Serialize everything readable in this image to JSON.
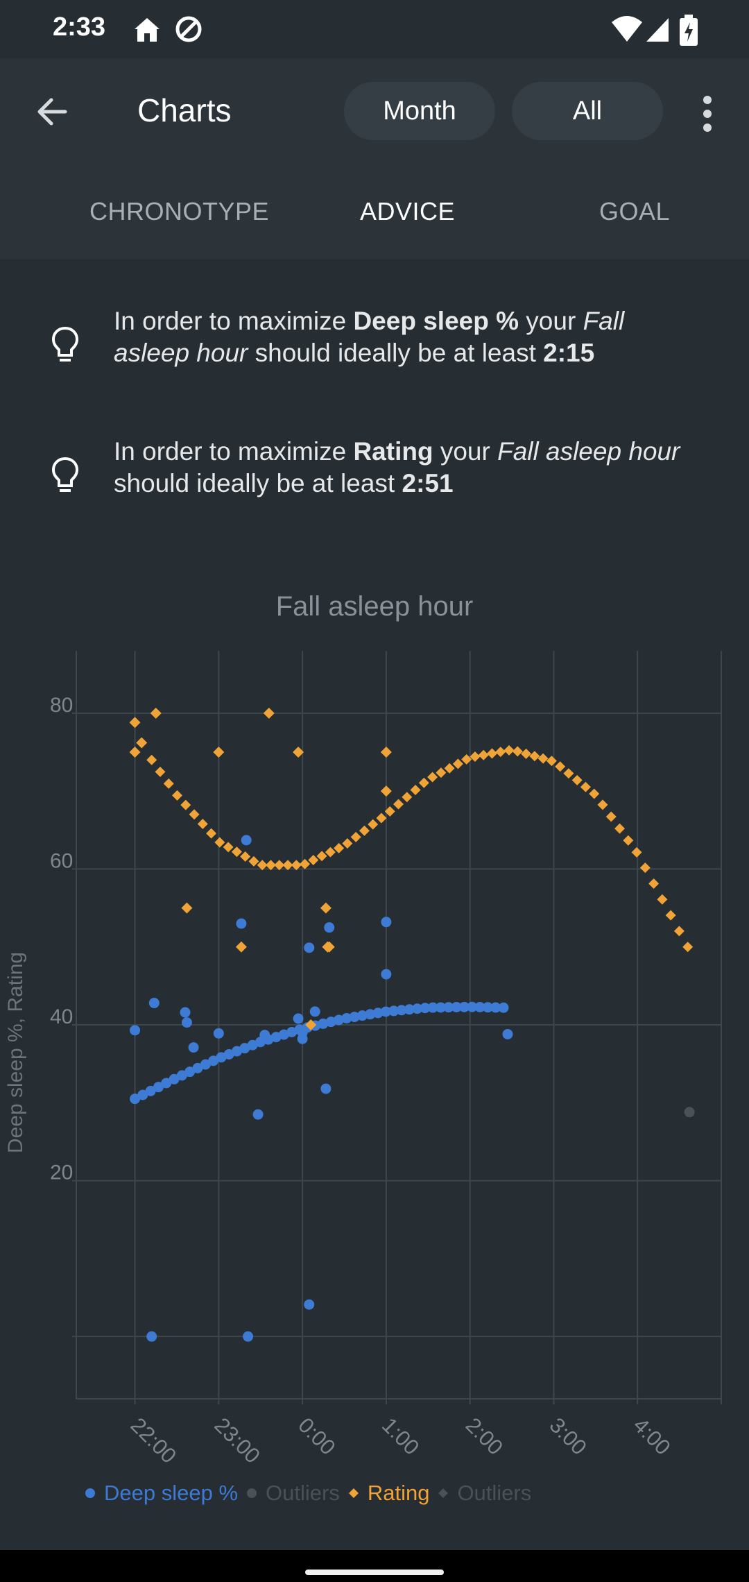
{
  "status": {
    "time": "2:33"
  },
  "header": {
    "title": "Charts",
    "month_label": "Month",
    "all_label": "All"
  },
  "tabs": [
    {
      "label": "CHRONOTYPE"
    },
    {
      "label": "ADVICE"
    },
    {
      "label": "GOAL"
    }
  ],
  "advice": [
    {
      "prefix": "In order to maximize ",
      "metric": "Deep sleep %",
      "mid1": " your ",
      "field": "Fall asleep hour",
      "mid2": " should ideally be at least ",
      "value": "2:15"
    },
    {
      "prefix": "In order to maximize ",
      "metric": "Rating",
      "mid1": " your ",
      "field": "Fall asleep hour",
      "mid2": " should ideally be at least ",
      "value": "2:51"
    }
  ],
  "colors": {
    "background": "#262d33",
    "deep_sleep": "#3d7bd4",
    "rating": "#f0a336",
    "outlier": "#4a5157"
  },
  "chart_data": {
    "type": "scatter",
    "title": "Fall asleep hour",
    "xlabel": "",
    "ylabel": "Deep sleep %, Rating",
    "x_tick_labels": [
      "22:00",
      "23:00",
      "0:00",
      "1:00",
      "2:00",
      "3:00",
      "4:00"
    ],
    "x_ticks_hours": [
      22,
      23,
      24,
      25,
      26,
      27,
      28
    ],
    "xlim_hours": [
      21.3,
      29.0
    ],
    "y_ticks": [
      20,
      40,
      60,
      80
    ],
    "ylim": [
      -8,
      88
    ],
    "grid": true,
    "legend": [
      {
        "label": "Deep sleep %",
        "color": "#3d7bd4",
        "marker": "circle"
      },
      {
        "label": "Outliers",
        "color": "#4a5157",
        "marker": "circle"
      },
      {
        "label": "Rating",
        "color": "#f0a336",
        "marker": "diamond"
      },
      {
        "label": "Outliers",
        "color": "#4a5157",
        "marker": "diamond"
      }
    ],
    "series": [
      {
        "name": "Deep sleep %",
        "marker": "circle",
        "x": [
          22.0,
          22.23,
          22.6,
          22.62,
          22.7,
          23.0,
          23.27,
          23.33,
          23.47,
          23.55,
          23.95,
          24.0,
          24.0,
          24.08,
          24.15,
          24.28,
          24.32,
          25.0,
          25.0,
          26.45,
          22.2,
          23.35,
          24.08
        ],
        "y": [
          39.3,
          42.8,
          41.6,
          40.3,
          37.1,
          38.9,
          53.0,
          63.7,
          28.5,
          38.7,
          40.8,
          39.0,
          38.2,
          49.9,
          41.7,
          31.8,
          52.5,
          53.2,
          46.5,
          38.8,
          0.0,
          0.0,
          4.1
        ]
      },
      {
        "name": "Outliers",
        "marker": "circle",
        "x": [
          28.62
        ],
        "y": [
          28.8
        ]
      },
      {
        "name": "Rating",
        "marker": "diamond",
        "x": [
          22.0,
          22.0,
          22.08,
          22.25,
          22.62,
          23.0,
          23.27,
          23.6,
          23.95,
          24.1,
          24.28,
          24.3,
          24.32,
          25.0,
          25.0
        ],
        "y": [
          78.8,
          75.0,
          76.2,
          80.0,
          55.0,
          75.0,
          50.0,
          80.0,
          75.0,
          40.0,
          55.0,
          50.0,
          50.0,
          75.0,
          70.0
        ]
      },
      {
        "name": "Outliers",
        "marker": "diamond",
        "x": [],
        "y": []
      }
    ],
    "trend_lines": [
      {
        "series": "Deep sleep %",
        "marker": "circle",
        "x": [
          22.0,
          22.5,
          23.0,
          23.5,
          24.0,
          24.5,
          25.0,
          25.5,
          26.0,
          26.4
        ],
        "y": [
          30.5,
          33.2,
          35.7,
          37.8,
          39.5,
          40.8,
          41.7,
          42.2,
          42.3,
          42.2
        ]
      },
      {
        "series": "Rating",
        "marker": "diamond",
        "x": [
          22.2,
          22.5,
          23.0,
          23.5,
          24.0,
          24.5,
          25.0,
          25.5,
          26.0,
          26.5,
          27.0,
          27.5,
          28.0,
          28.3,
          28.6
        ],
        "y": [
          74.0,
          69.5,
          63.5,
          60.5,
          60.5,
          63.0,
          67.0,
          71.5,
          74.3,
          75.3,
          73.8,
          69.5,
          62.0,
          56.0,
          50.0
        ]
      }
    ]
  }
}
